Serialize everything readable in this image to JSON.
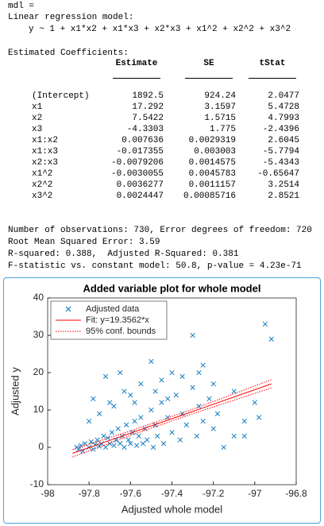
{
  "header": {
    "var": "mdl =",
    "model_title": "Linear regression model:",
    "formula": "y ~ 1 + x1*x2 + x1*x3 + x2*x3 + x1^2 + x2^2 + x3^2"
  },
  "table": {
    "title": "Estimated Coefficients:",
    "columns": [
      "Estimate",
      "SE",
      "tStat"
    ],
    "rows": [
      [
        "(Intercept)",
        "1892.5",
        "924.24",
        "2.0477"
      ],
      [
        "x1",
        "17.292",
        "3.1597",
        "5.4728"
      ],
      [
        "x2",
        "7.5422",
        "1.5715",
        "4.7993"
      ],
      [
        "x3",
        "-4.3303",
        "1.775",
        "-2.4396"
      ],
      [
        "x1:x2",
        "0.007636",
        "0.0029319",
        "2.6045"
      ],
      [
        "x1:x3",
        "-0.017355",
        "0.003003",
        "-5.7794"
      ],
      [
        "x2:x3",
        "-0.0079206",
        "0.0014575",
        "-5.4343"
      ],
      [
        "x1^2",
        "-0.0030055",
        "0.0045783",
        "-0.65647"
      ],
      [
        "x2^2",
        "0.0036277",
        "0.0011157",
        "3.2514"
      ],
      [
        "x3^2",
        "0.0024447",
        "0.00085716",
        "2.8521"
      ]
    ]
  },
  "stats": [
    "Number of observations: 730, Error degrees of freedom: 720",
    "Root Mean Squared Error: 3.59",
    "R-squared: 0.388,  Adjusted R-Squared: 0.381",
    "F-statistic vs. constant model: 50.8, p-value = 4.23e-71"
  ],
  "chart_data": {
    "type": "scatter",
    "title": "Added variable plot for whole model",
    "xlabel": "Adjusted whole model",
    "ylabel": "Adjusted y",
    "xlim": [
      -98,
      -96.8
    ],
    "xticks": [
      -98,
      -97.8,
      -97.6,
      -97.4,
      -97.2,
      -97,
      -96.8
    ],
    "ylim": [
      -10,
      40
    ],
    "yticks": [
      -10,
      0,
      10,
      20,
      30,
      40
    ],
    "legend": "northwest",
    "series": [
      {
        "name": "Adjusted data",
        "color": "#0072bd",
        "x": [
          -97.86,
          -97.85,
          -97.84,
          -97.83,
          -97.82,
          -97.8,
          -97.79,
          -97.78,
          -97.77,
          -97.76,
          -97.75,
          -97.74,
          -97.73,
          -97.72,
          -97.71,
          -97.7,
          -97.69,
          -97.68,
          -97.67,
          -97.66,
          -97.65,
          -97.64,
          -97.63,
          -97.62,
          -97.61,
          -97.6,
          -97.59,
          -97.58,
          -97.57,
          -97.56,
          -97.55,
          -97.54,
          -97.53,
          -97.52,
          -97.5,
          -97.49,
          -97.48,
          -97.47,
          -97.45,
          -97.44,
          -97.42,
          -97.4,
          -97.38,
          -97.36,
          -97.35,
          -97.33,
          -97.3,
          -97.28,
          -97.27,
          -97.25,
          -97.22,
          -97.2,
          -97.18,
          -97.15,
          -97.1,
          -97.05,
          -97,
          -96.98,
          -96.95,
          -96.92,
          -97.3,
          -97.25,
          -97.27,
          -97.5,
          -97.72,
          -97.65,
          -97.63,
          -97.55,
          -97.45,
          -97.4,
          -97.6,
          -97.78,
          -97.7,
          -97.8,
          -97.75,
          -97.1,
          -97.05,
          -97.2,
          -97.35,
          -97.58,
          -97.68,
          -97.48,
          -97.42
        ],
        "values": [
          0,
          -0.5,
          0.5,
          -1,
          1,
          0,
          1.5,
          -0.5,
          0.8,
          2,
          0.3,
          1,
          3,
          0,
          2.5,
          1,
          4,
          0.5,
          2,
          5,
          1,
          3,
          0,
          6,
          2,
          1,
          4,
          7,
          0.5,
          3,
          8,
          1,
          5,
          2,
          10,
          0,
          6,
          3,
          12,
          1,
          8,
          4,
          14,
          2,
          9,
          6,
          16,
          3,
          11,
          7,
          13,
          5,
          9,
          0,
          3,
          7,
          12,
          8,
          33,
          29,
          30,
          22,
          20,
          23,
          19,
          20,
          15,
          17,
          18,
          20,
          14,
          13,
          12,
          7,
          9,
          15,
          3,
          17,
          19,
          12,
          11,
          15,
          13
        ]
      },
      {
        "name": "Fit: y=19.3562*x",
        "color": "#ff0000",
        "x": [
          -97.88,
          -97.6,
          -97.3,
          -96.92
        ],
        "values": [
          -1.6,
          3.8,
          9.6,
          17.0
        ]
      },
      {
        "name": "95% conf. bounds",
        "color": "#ff0000",
        "x": [
          -97.88,
          -97.6,
          -97.3,
          -96.92
        ],
        "values": [
          -2.6,
          3.2,
          9.0,
          15.9
        ],
        "upper": [
          -0.6,
          4.4,
          10.2,
          18.1
        ]
      }
    ]
  }
}
